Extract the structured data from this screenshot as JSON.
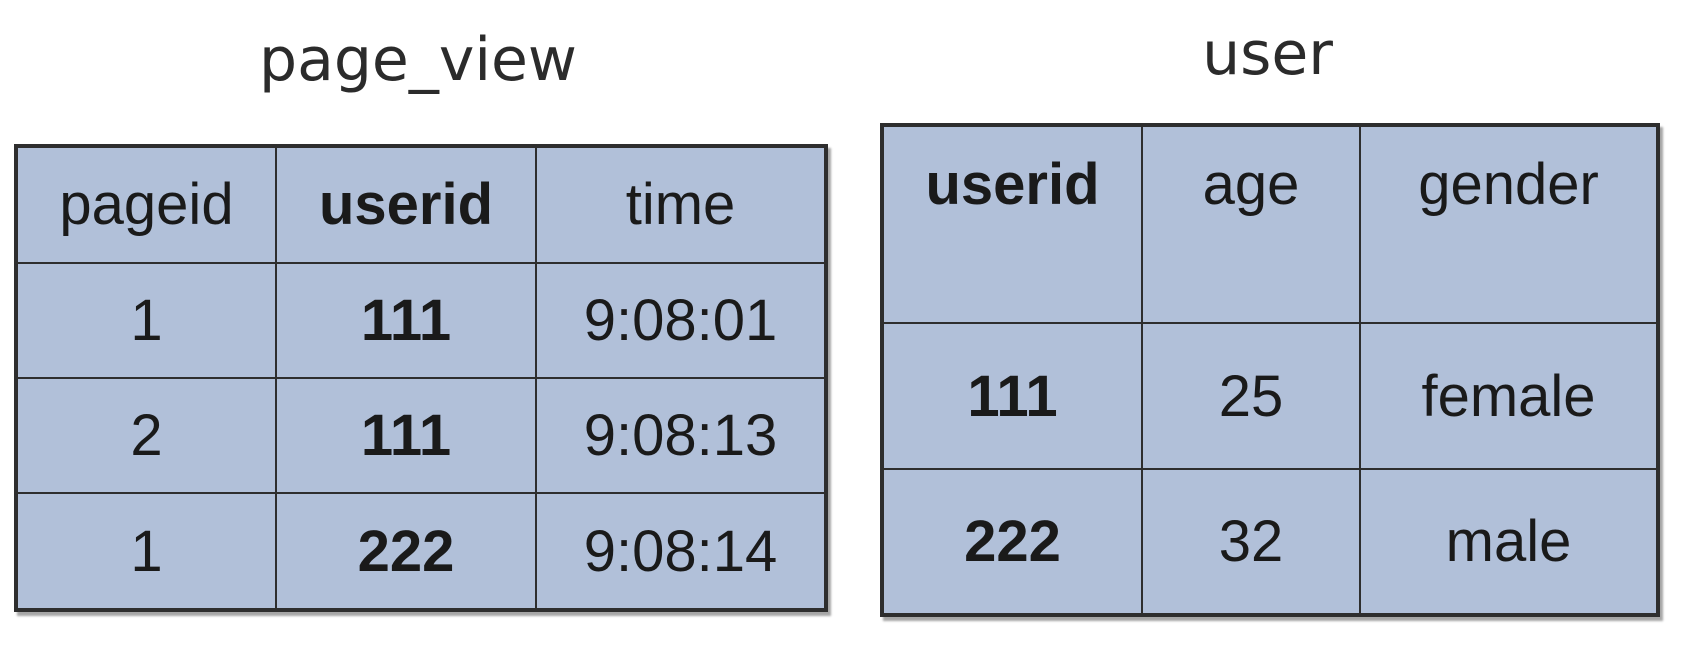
{
  "page_view": {
    "title": "page_view",
    "columns": [
      "pageid",
      "userid",
      "time"
    ],
    "rows": [
      [
        "1",
        "111",
        "9:08:01"
      ],
      [
        "2",
        "111",
        "9:08:13"
      ],
      [
        "1",
        "222",
        "9:08:14"
      ]
    ]
  },
  "user": {
    "title": "user",
    "columns": [
      "userid",
      "age",
      "gender"
    ],
    "rows": [
      [
        "111",
        "25",
        "female"
      ],
      [
        "222",
        "32",
        "male"
      ]
    ]
  },
  "colors": {
    "cell_fill": "#b1c0d9",
    "border": "#2e2e2e",
    "text": "#1a1a1a"
  }
}
